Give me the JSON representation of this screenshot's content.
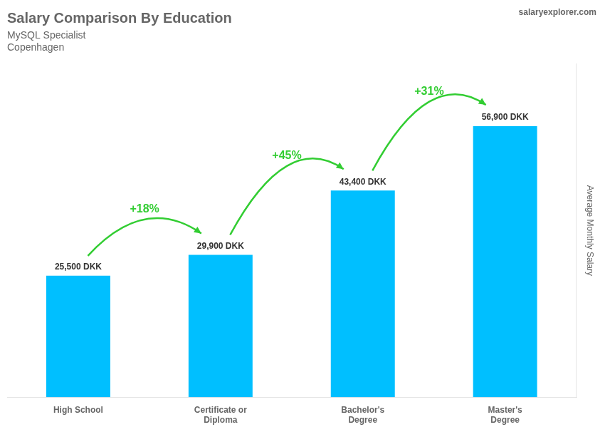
{
  "chart_data": {
    "type": "bar",
    "title": "Salary Comparison By Education",
    "subtitle": [
      "MySQL Specialist",
      "Copenhagen"
    ],
    "ylabel": "Average Monthly Salary",
    "categories": [
      "High School",
      "Certificate or\nDiploma",
      "Bachelor's\nDegree",
      "Master's\nDegree"
    ],
    "values": [
      25500,
      29900,
      43400,
      56900
    ],
    "value_labels": [
      "25,500 DKK",
      "29,900 DKK",
      "43,400 DKK",
      "56,900 DKK"
    ],
    "data_labels": true,
    "color": "#00BFFF",
    "annotations": [
      {
        "text": "+18%",
        "from": "High School",
        "to": "Certificate or\nDiploma",
        "color": "#32CD32"
      },
      {
        "text": "+45%",
        "from": "Certificate or\nDiploma",
        "to": "Bachelor's\nDegree",
        "color": "#32CD32"
      },
      {
        "text": "+31%",
        "from": "Bachelor's\nDegree",
        "to": "Master's\nDegree",
        "color": "#32CD32"
      },
      {
        "text": "salaryexplorer.com"
      }
    ],
    "ylim": [
      0,
      70000
    ],
    "tick_labels": "x",
    "grid": false
  }
}
